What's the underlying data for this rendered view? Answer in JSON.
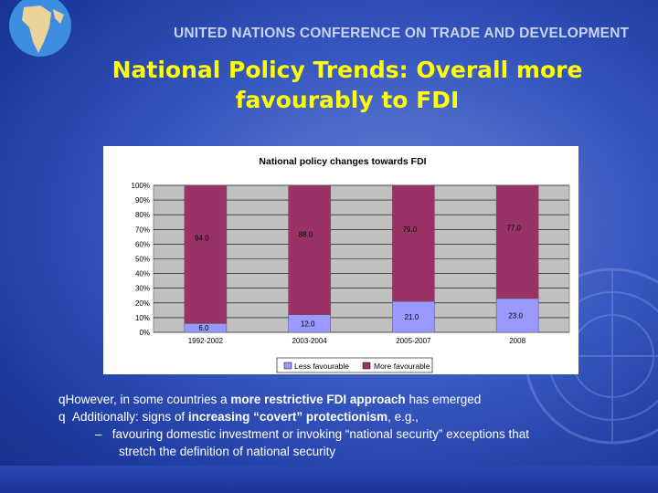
{
  "header": {
    "banner": "UNITED NATIONS CONFERENCE ON TRADE AND DEVELOPMENT",
    "title_line1": "National Policy Trends: Overall more",
    "title_line2": "favourably to FDI"
  },
  "chart_data": {
    "type": "bar",
    "stacked": true,
    "title": "National policy changes towards FDI",
    "categories": [
      "1992-2002",
      "2003-2004",
      "2005-2007",
      "2008"
    ],
    "series": [
      {
        "name": "Less favourable",
        "values": [
          6.0,
          12.0,
          21.0,
          23.0
        ],
        "labels": [
          "6.0",
          "12.0",
          "21.0",
          "23.0"
        ],
        "color": "#9999ff"
      },
      {
        "name": "More favourable",
        "values": [
          94.0,
          88.0,
          79.0,
          77.0
        ],
        "labels": [
          "94.0",
          "88.0",
          "79.0",
          "77.0"
        ],
        "color": "#993366"
      }
    ],
    "yticks": [
      "0%",
      "10%",
      "20%",
      "30%",
      "40%",
      "50%",
      "60%",
      "70%",
      "80%",
      "90%",
      "100%"
    ],
    "ylim": [
      0,
      100
    ],
    "legend": "bottom"
  },
  "bullets": {
    "b1_pre": "However, in some countries a ",
    "b1_bold": "more restrictive FDI approach",
    "b1_post": " has emerged",
    "b2_pre": "Additionally: signs of ",
    "b2_bold": "increasing “covert” protectionism",
    "b2_post": ", e.g.,",
    "b3_line1": "favouring domestic investment or invoking “national security” exceptions that",
    "b3_line2": "stretch the definition of national security"
  }
}
